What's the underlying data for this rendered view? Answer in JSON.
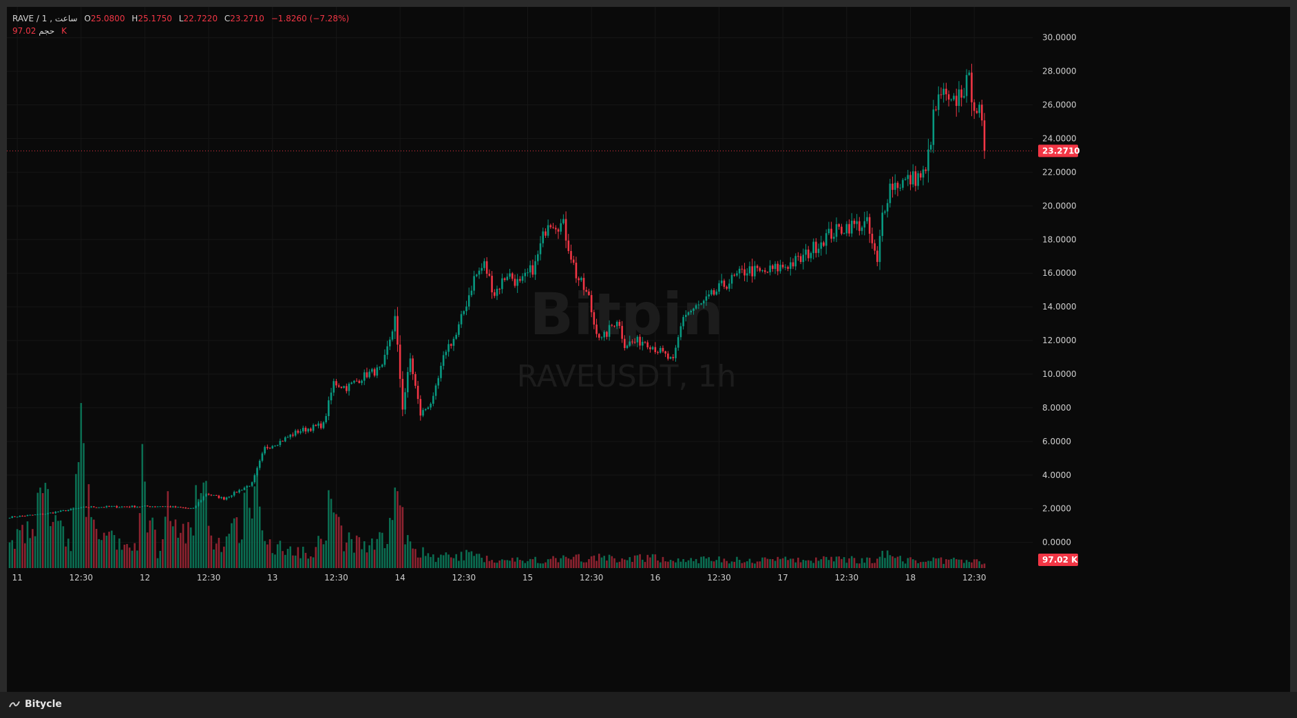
{
  "legend": {
    "symbol": "RAVE",
    "interval": "1",
    "timeframe_label": "ساعت",
    "o_label": "O",
    "open": "25.0800",
    "h_label": "H",
    "high": "25.1750",
    "l_label": "L",
    "low": "22.7220",
    "c_label": "C",
    "close": "23.2710",
    "change": "−1.8260 (−7.28%)",
    "volume_label": "حجم",
    "volume": "97.02 K"
  },
  "watermark": {
    "brand": "Bitpin",
    "pair": "RAVEUSDT, 1h"
  },
  "footer": {
    "brand": "Bitycle",
    "logo_icon": "bitycle-logo-icon"
  },
  "colors": {
    "up": "#089981",
    "down": "#f23645",
    "up_volume": "#0b6e52",
    "down_volume": "#8e2330"
  },
  "chart_data": {
    "type": "candlestick",
    "symbol": "RAVEUSDT",
    "interval": "1h",
    "ylim": [
      -1.2,
      31.5
    ],
    "y_ticks": [
      0,
      2,
      4,
      6,
      8,
      10,
      12,
      14,
      16,
      18,
      20,
      22,
      24,
      26,
      28,
      30
    ],
    "y_tick_labels": [
      "0.0000",
      "2.0000",
      "4.0000",
      "6.0000",
      "8.0000",
      "10.0000",
      "12.0000",
      "14.0000",
      "16.0000",
      "18.0000",
      "20.0000",
      "22.0000",
      "24.0000",
      "26.0000",
      "28.0000",
      "30.0000"
    ],
    "x_ticks": [
      {
        "label": "11",
        "bar": 3
      },
      {
        "label": "12:30",
        "bar": 28
      },
      {
        "label": "12",
        "bar": 53
      },
      {
        "label": "12:30",
        "bar": 78
      },
      {
        "label": "13",
        "bar": 103
      },
      {
        "label": "12:30",
        "bar": 128
      },
      {
        "label": "14",
        "bar": 153
      },
      {
        "label": "12:30",
        "bar": 178
      },
      {
        "label": "15",
        "bar": 203
      },
      {
        "label": "12:30",
        "bar": 228
      },
      {
        "label": "16",
        "bar": 253
      },
      {
        "label": "12:30",
        "bar": 278
      },
      {
        "label": "17",
        "bar": 303
      },
      {
        "label": "12:30",
        "bar": 328
      },
      {
        "label": "18",
        "bar": 353
      },
      {
        "label": "12:30",
        "bar": 378
      }
    ],
    "last_price": 23.271,
    "last_price_label": "23.2710",
    "volume_badge_label": "97.02 K",
    "keypoints": [
      [
        0,
        1.5
      ],
      [
        14,
        1.7
      ],
      [
        30,
        2.1
      ],
      [
        60,
        2.15
      ],
      [
        72,
        2.0
      ],
      [
        77,
        2.9
      ],
      [
        84,
        2.6
      ],
      [
        95,
        3.5
      ],
      [
        100,
        5.6
      ],
      [
        106,
        6.0
      ],
      [
        113,
        6.6
      ],
      [
        123,
        7.0
      ],
      [
        127,
        9.5
      ],
      [
        132,
        9.2
      ],
      [
        140,
        10.0
      ],
      [
        146,
        10.3
      ],
      [
        151,
        13.3
      ],
      [
        154,
        8.0
      ],
      [
        157,
        10.9
      ],
      [
        161,
        7.6
      ],
      [
        166,
        8.5
      ],
      [
        171,
        11.5
      ],
      [
        175,
        12.3
      ],
      [
        182,
        15.7
      ],
      [
        186,
        16.5
      ],
      [
        190,
        14.8
      ],
      [
        195,
        16.0
      ],
      [
        200,
        15.3
      ],
      [
        206,
        16.5
      ],
      [
        211,
        19.2
      ],
      [
        217,
        18.8
      ],
      [
        222,
        15.9
      ],
      [
        227,
        14.5
      ],
      [
        229,
        13.0
      ],
      [
        232,
        12.0
      ],
      [
        238,
        13.3
      ],
      [
        241,
        11.8
      ],
      [
        249,
        12.0
      ],
      [
        256,
        11.2
      ],
      [
        260,
        10.7
      ],
      [
        264,
        13.5
      ],
      [
        272,
        14.2
      ],
      [
        279,
        15.2
      ],
      [
        289,
        16.2
      ],
      [
        295,
        16.0
      ],
      [
        303,
        16.4
      ],
      [
        310,
        16.8
      ],
      [
        320,
        18.2
      ],
      [
        328,
        18.8
      ],
      [
        336,
        18.9
      ],
      [
        340,
        16.5
      ],
      [
        342,
        19.5
      ],
      [
        345,
        21.2
      ],
      [
        352,
        21.5
      ],
      [
        359,
        21.9
      ],
      [
        362,
        25.2
      ],
      [
        365,
        26.7
      ],
      [
        369,
        25.8
      ],
      [
        373,
        26.9
      ],
      [
        376,
        27.3
      ],
      [
        378,
        26.2
      ],
      [
        381,
        25.08
      ],
      [
        382,
        23.27
      ]
    ],
    "volume_keypoints": [
      [
        0,
        0.16
      ],
      [
        5,
        0.22
      ],
      [
        10,
        0.35
      ],
      [
        14,
        0.42
      ],
      [
        17,
        0.28
      ],
      [
        24,
        0.14
      ],
      [
        28,
        1.0
      ],
      [
        30,
        0.42
      ],
      [
        36,
        0.18
      ],
      [
        50,
        0.1
      ],
      [
        52,
        0.6
      ],
      [
        54,
        0.35
      ],
      [
        58,
        0.1
      ],
      [
        63,
        0.4
      ],
      [
        66,
        0.15
      ],
      [
        72,
        0.28
      ],
      [
        76,
        0.55
      ],
      [
        78,
        0.22
      ],
      [
        84,
        0.12
      ],
      [
        93,
        0.35
      ],
      [
        96,
        0.55
      ],
      [
        99,
        0.25
      ],
      [
        105,
        0.12
      ],
      [
        120,
        0.1
      ],
      [
        126,
        0.4
      ],
      [
        130,
        0.18
      ],
      [
        140,
        0.12
      ],
      [
        147,
        0.18
      ],
      [
        152,
        0.4
      ],
      [
        156,
        0.15
      ],
      [
        165,
        0.06
      ],
      [
        180,
        0.08
      ],
      [
        190,
        0.05
      ],
      [
        210,
        0.05
      ],
      [
        220,
        0.06
      ],
      [
        250,
        0.06
      ],
      [
        270,
        0.05
      ],
      [
        300,
        0.05
      ],
      [
        340,
        0.05
      ],
      [
        342,
        0.1
      ],
      [
        350,
        0.05
      ],
      [
        382,
        0.04
      ]
    ]
  }
}
